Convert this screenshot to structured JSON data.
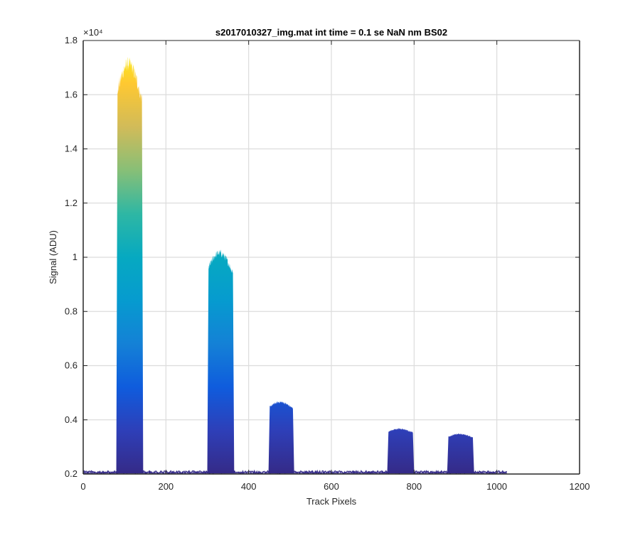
{
  "chart_data": {
    "type": "area",
    "title": "s2017010327_img.mat int time = 0.1 se  NaN nm BS02",
    "xlabel": "Track Pixels",
    "ylabel": "Signal (ADU)",
    "y_exponent": "×10⁴",
    "xlim": [
      0,
      1200
    ],
    "ylim": [
      0.2,
      1.8
    ],
    "y_scale_note": "values in units of 10^4 ADU",
    "grid": true,
    "xticks": [
      "0",
      "200",
      "400",
      "600",
      "800",
      "1000",
      "1200"
    ],
    "yticks": [
      "0.2",
      "0.4",
      "0.6",
      "0.8",
      "1",
      "1.2",
      "1.4",
      "1.6",
      "1.8"
    ],
    "data_extent_x": [
      0,
      1024
    ],
    "baseline": 0.207,
    "colormap": "parula",
    "colors": [
      "#352a87",
      "#0f5cdd",
      "#1481d6",
      "#06a4ca",
      "#2eb7a4",
      "#87bf77",
      "#d1bb59",
      "#fec832",
      "#f9fb0e"
    ],
    "peaks": [
      {
        "x_start": 80,
        "x_end": 145,
        "peak": 1.74
      },
      {
        "x_start": 300,
        "x_end": 365,
        "peak": 1.03
      },
      {
        "x_start": 448,
        "x_end": 510,
        "peak": 0.47
      },
      {
        "x_start": 735,
        "x_end": 800,
        "peak": 0.37
      },
      {
        "x_start": 880,
        "x_end": 945,
        "peak": 0.35
      }
    ]
  }
}
